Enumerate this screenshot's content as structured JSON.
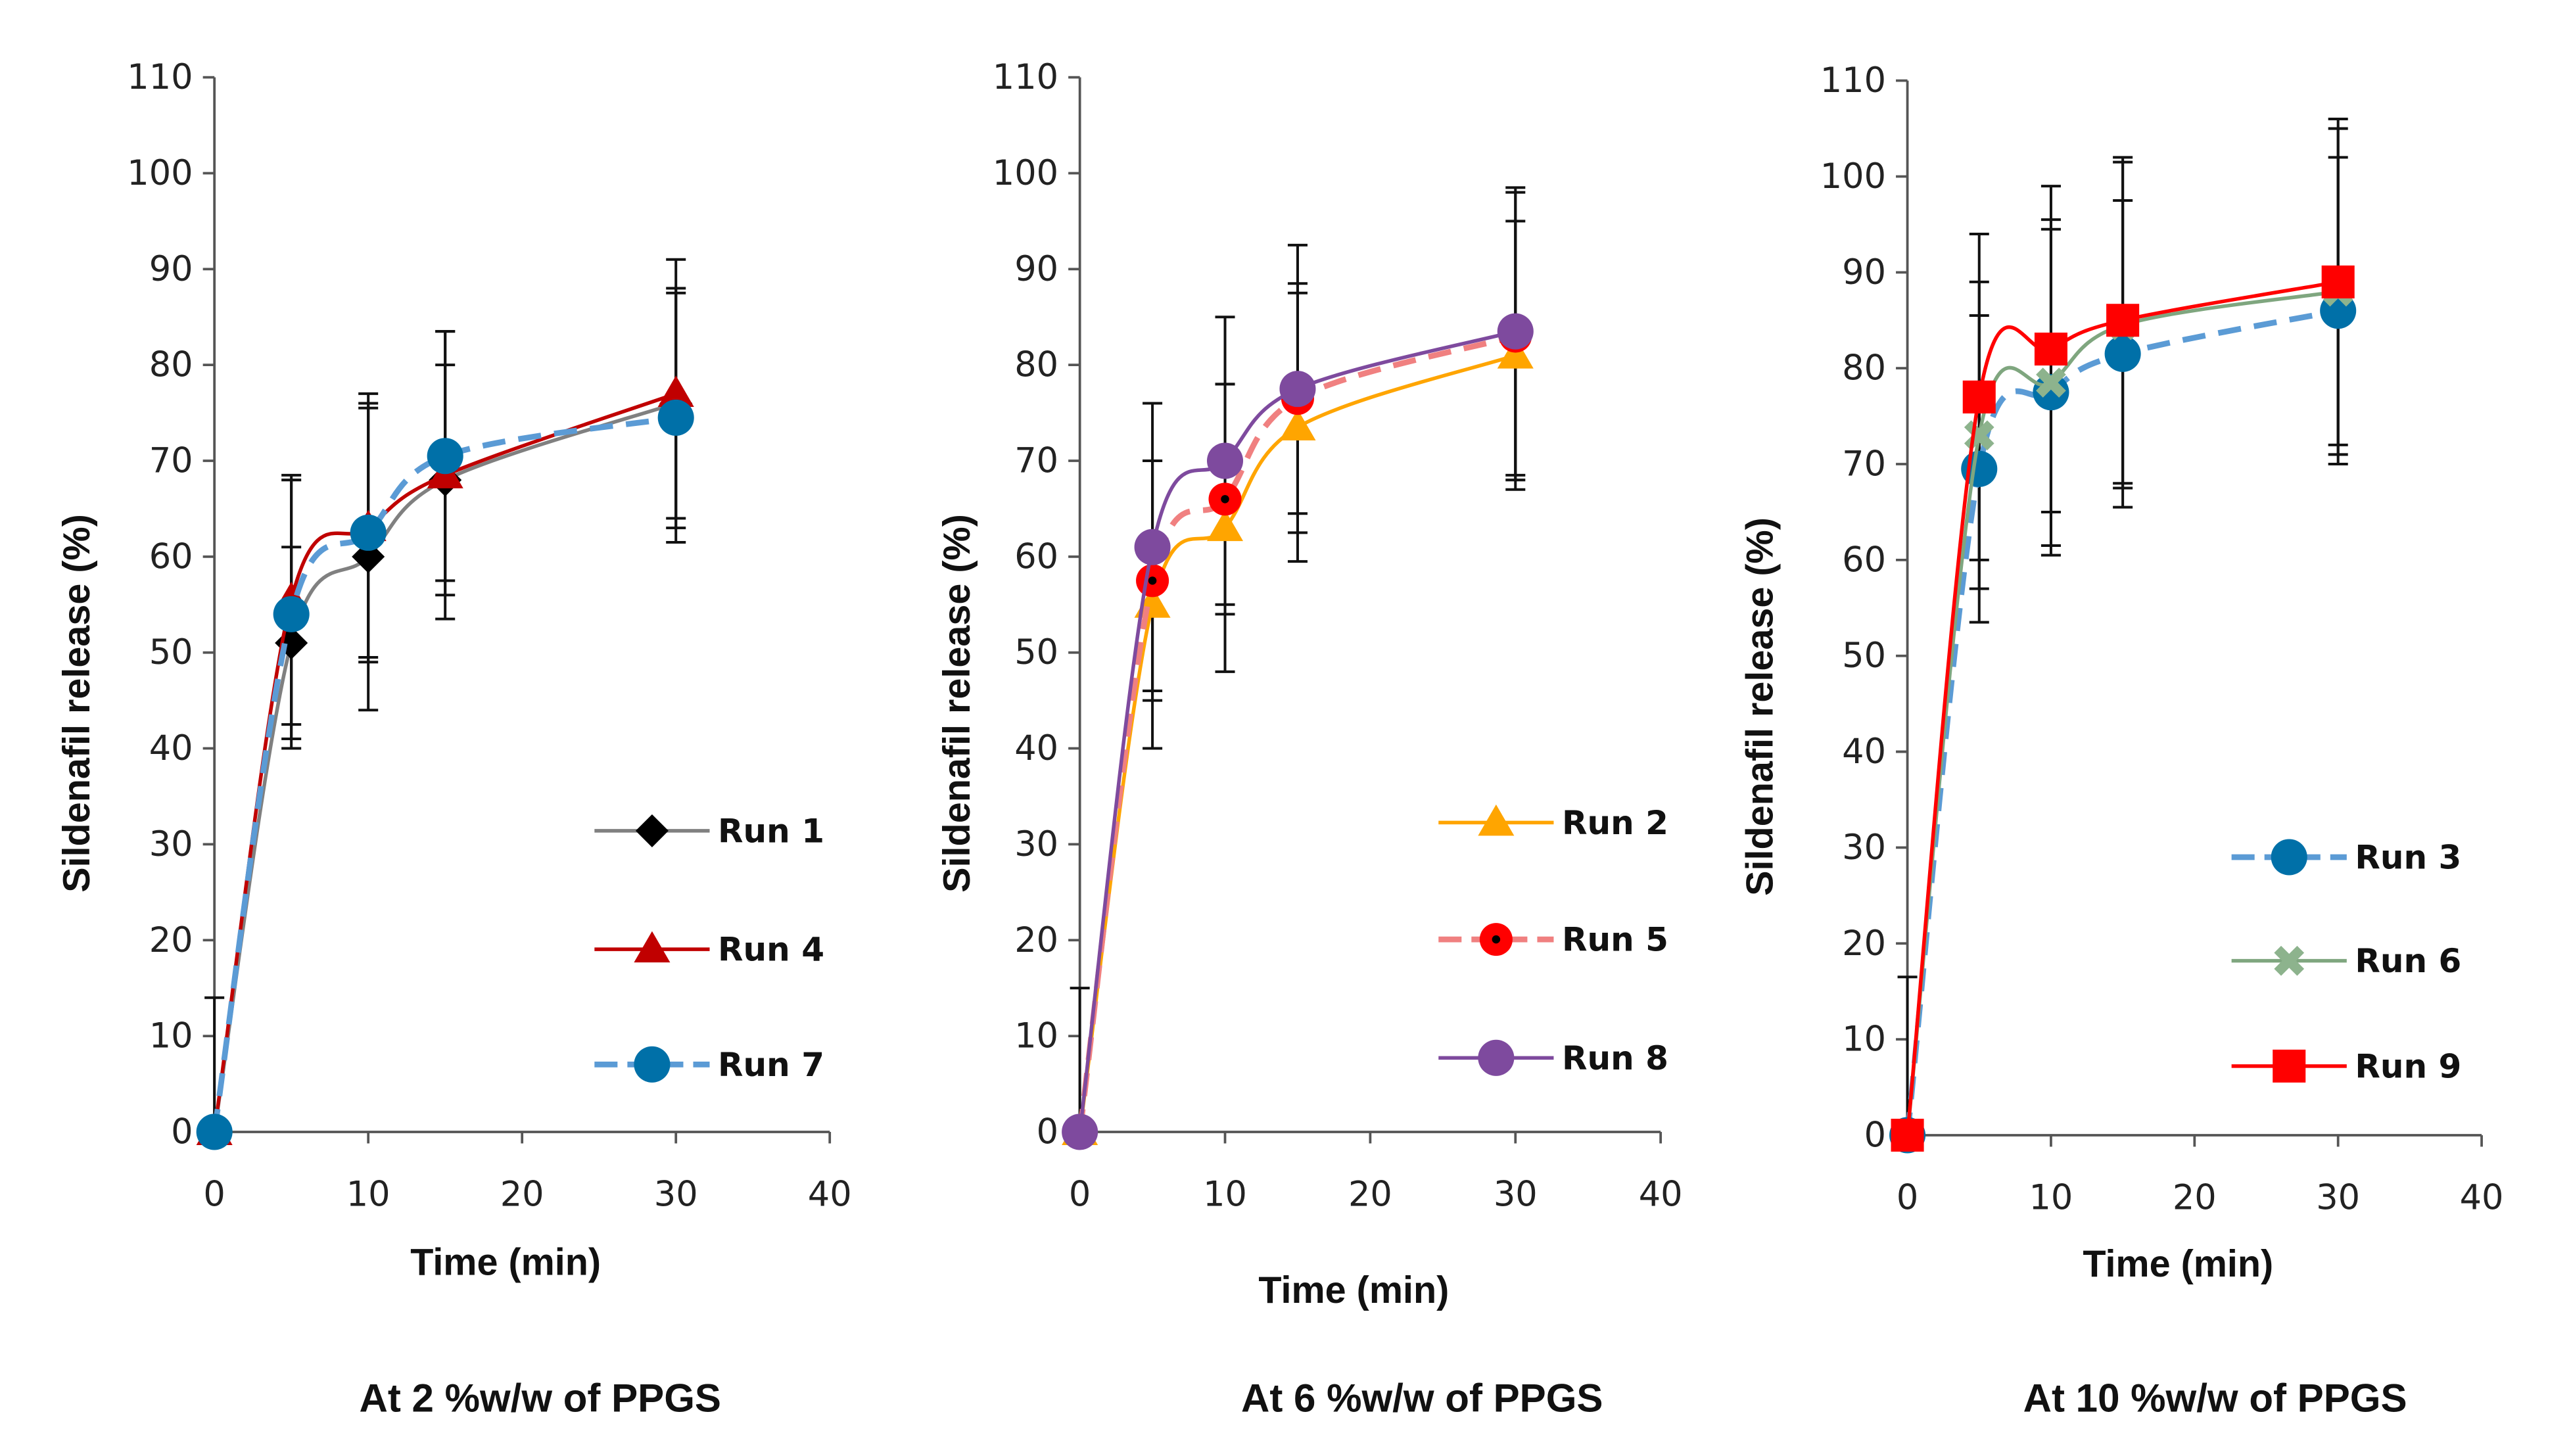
{
  "chart_data": [
    {
      "type": "line",
      "caption": "At 2 %w/w of PPGS",
      "xlabel": "Time (min)",
      "ylabel": "Sildenafil release (%)",
      "xlim": [
        0,
        40
      ],
      "ylim": [
        0,
        110
      ],
      "xticks": [
        "0",
        "10",
        "20",
        "30",
        "40"
      ],
      "yticks": [
        "0",
        "10",
        "20",
        "30",
        "40",
        "50",
        "60",
        "70",
        "80",
        "90",
        "100",
        "110"
      ],
      "legend_position": "bottom-right",
      "x": [
        0,
        5,
        10,
        15,
        30
      ],
      "series": [
        {
          "name": "Run 1",
          "values": [
            0,
            51,
            60,
            68,
            76
          ],
          "errors": [
            14,
            10,
            16,
            12,
            12
          ],
          "color": "#000000",
          "line": "#808080",
          "marker": "diamond",
          "dashed": false
        },
        {
          "name": "Run 4",
          "values": [
            0,
            55.5,
            63,
            68.5,
            77
          ],
          "errors": [
            0,
            13,
            14,
            15,
            14
          ],
          "color": "#C00000",
          "line": "#C00000",
          "marker": "triangle",
          "dashed": false
        },
        {
          "name": "Run 7",
          "values": [
            0,
            54,
            62.5,
            70.5,
            74.5
          ],
          "errors": [
            0,
            14,
            13,
            13,
            13
          ],
          "color": "#0070A8",
          "line": "#5B9BD5",
          "marker": "circle",
          "dashed": true
        }
      ]
    },
    {
      "type": "line",
      "caption": "At 6 %w/w of PPGS",
      "xlabel": "Time (min)",
      "ylabel": "Sildenafil release (%)",
      "xlim": [
        0,
        40
      ],
      "ylim": [
        0,
        110
      ],
      "xticks": [
        "0",
        "10",
        "20",
        "30",
        "40"
      ],
      "yticks": [
        "0",
        "10",
        "20",
        "30",
        "40",
        "50",
        "60",
        "70",
        "80",
        "90",
        "100",
        "110"
      ],
      "legend_position": "bottom-right",
      "x": [
        0,
        5,
        10,
        15,
        30
      ],
      "series": [
        {
          "name": "Run 2",
          "values": [
            0,
            55,
            63,
            73.5,
            81
          ],
          "errors": [
            15,
            15,
            15,
            14,
            14
          ],
          "color": "#FFA500",
          "line": "#FFA500",
          "marker": "triangle",
          "dashed": false
        },
        {
          "name": "Run 5",
          "values": [
            0,
            57.5,
            66,
            76.5,
            83
          ],
          "errors": [
            0,
            12.5,
            12,
            12,
            15
          ],
          "color": "#FF0000",
          "line": "#F08080",
          "marker": "target",
          "dashed": true
        },
        {
          "name": "Run 8",
          "values": [
            0,
            61,
            70,
            77.5,
            83.5
          ],
          "errors": [
            0,
            15,
            15,
            15,
            15
          ],
          "color": "#7E4A9E",
          "line": "#7E4A9E",
          "marker": "circle",
          "dashed": false
        }
      ]
    },
    {
      "type": "line",
      "caption": "At 10 %w/w of PPGS",
      "xlabel": "Time (min)",
      "ylabel": "Sildenafil release (%)",
      "xlim": [
        0,
        40
      ],
      "ylim": [
        0,
        110
      ],
      "xticks": [
        "0",
        "10",
        "20",
        "30",
        "40"
      ],
      "yticks": [
        "0",
        "10",
        "20",
        "30",
        "40",
        "50",
        "60",
        "70",
        "80",
        "90",
        "100",
        "110"
      ],
      "legend_position": "bottom-right",
      "x": [
        0,
        5,
        10,
        15,
        30
      ],
      "series": [
        {
          "name": "Run 3",
          "values": [
            0,
            69.5,
            77.5,
            81.5,
            86
          ],
          "errors": [
            16.5,
            16,
            17,
            16,
            16
          ],
          "color": "#0070A8",
          "line": "#5B9BD5",
          "marker": "circle",
          "dashed": true
        },
        {
          "name": "Run 6",
          "values": [
            0,
            73,
            78.5,
            84.5,
            88
          ],
          "errors": [
            0,
            16,
            17,
            17,
            17
          ],
          "color": "#8DB38D",
          "line": "#7FA67F",
          "marker": "x",
          "dashed": false
        },
        {
          "name": "Run 9",
          "values": [
            0,
            77,
            82,
            85,
            89
          ],
          "errors": [
            0,
            17,
            17,
            17,
            17
          ],
          "color": "#FF0000",
          "line": "#FF0000",
          "marker": "square",
          "dashed": false
        }
      ]
    }
  ]
}
